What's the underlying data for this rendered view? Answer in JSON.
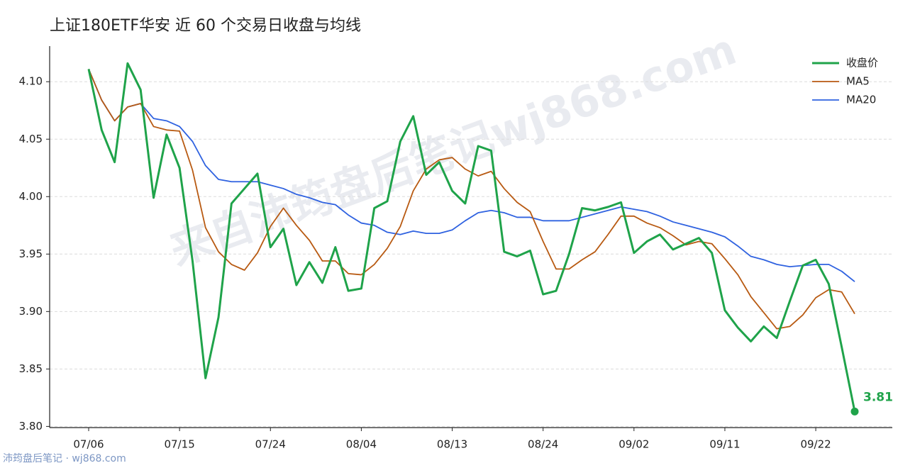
{
  "chart_data": {
    "type": "line",
    "title": "上证180ETF华安 近 60 个交易日收盘与均线",
    "watermark": "来自沛筠盘后笔记wj868.com",
    "footer": "沛筠盘后笔记 · wj868.com",
    "categories": [
      "07/06",
      null,
      null,
      null,
      null,
      null,
      null,
      "07/15",
      null,
      null,
      null,
      null,
      null,
      null,
      "07/24",
      null,
      null,
      null,
      null,
      null,
      null,
      "08/04",
      null,
      null,
      null,
      null,
      null,
      null,
      "08/13",
      null,
      null,
      null,
      null,
      null,
      null,
      "08/24",
      null,
      null,
      null,
      null,
      null,
      null,
      "09/02",
      null,
      null,
      null,
      null,
      null,
      null,
      "09/11",
      null,
      null,
      null,
      null,
      null,
      null,
      "09/22",
      null,
      null,
      null
    ],
    "series": [
      {
        "name": "收盘价",
        "color": "#1fa34a",
        "width": 3,
        "values": [
          4.111,
          4.058,
          4.03,
          4.116,
          4.093,
          3.999,
          4.054,
          4.025,
          3.944,
          3.842,
          3.895,
          3.994,
          4.007,
          4.02,
          3.956,
          3.972,
          3.923,
          3.943,
          3.925,
          3.956,
          3.918,
          3.92,
          3.99,
          3.996,
          4.048,
          4.07,
          4.019,
          4.03,
          4.005,
          3.994,
          4.044,
          4.04,
          3.952,
          3.948,
          3.953,
          3.915,
          3.918,
          3.95,
          3.99,
          3.988,
          3.991,
          3.995,
          3.951,
          3.961,
          3.967,
          3.954,
          3.959,
          3.964,
          3.951,
          3.901,
          3.886,
          3.874,
          3.887,
          3.877,
          3.909,
          3.94,
          3.945,
          3.924,
          3.869,
          3.813
        ],
        "value_labels": [
          null,
          null,
          null,
          null,
          null,
          null,
          null,
          null,
          null,
          null,
          null,
          null,
          null,
          null,
          null,
          null,
          null,
          null,
          null,
          null,
          null,
          null,
          null,
          null,
          null,
          null,
          null,
          null,
          null,
          null,
          null,
          null,
          null,
          null,
          null,
          null,
          null,
          null,
          null,
          null,
          null,
          null,
          null,
          null,
          null,
          null,
          null,
          null,
          null,
          null,
          null,
          null,
          null,
          null,
          null,
          null,
          null,
          null,
          null,
          "3.81"
        ]
      },
      {
        "name": "MA5",
        "color": "#b85a12",
        "width": 1.8,
        "values": [
          4.111,
          4.084,
          4.066,
          4.078,
          4.081,
          4.061,
          4.058,
          4.057,
          4.023,
          3.973,
          3.952,
          3.941,
          3.936,
          3.951,
          3.974,
          3.99,
          3.975,
          3.962,
          3.944,
          3.944,
          3.933,
          3.932,
          3.941,
          3.955,
          3.974,
          4.005,
          4.024,
          4.032,
          4.034,
          4.024,
          4.018,
          4.022,
          4.007,
          3.995,
          3.987,
          3.961,
          3.937,
          3.937,
          3.945,
          3.952,
          3.967,
          3.983,
          3.983,
          3.977,
          3.973,
          3.966,
          3.958,
          3.961,
          3.959,
          3.946,
          3.932,
          3.913,
          3.899,
          3.885,
          3.887,
          3.897,
          3.912,
          3.919,
          3.917,
          3.898
        ]
      },
      {
        "name": "MA20",
        "color": "#2f62e0",
        "width": 1.8,
        "values": [
          4.111,
          4.084,
          4.066,
          4.078,
          4.081,
          4.068,
          4.066,
          4.061,
          4.048,
          4.027,
          4.015,
          4.013,
          4.013,
          4.013,
          4.01,
          4.007,
          4.002,
          3.999,
          3.995,
          3.993,
          3.984,
          3.977,
          3.975,
          3.969,
          3.967,
          3.97,
          3.968,
          3.968,
          3.971,
          3.979,
          3.986,
          3.988,
          3.986,
          3.982,
          3.982,
          3.979,
          3.979,
          3.979,
          3.982,
          3.985,
          3.988,
          3.991,
          3.989,
          3.987,
          3.983,
          3.978,
          3.975,
          3.972,
          3.969,
          3.965,
          3.957,
          3.948,
          3.945,
          3.941,
          3.939,
          3.94,
          3.941,
          3.941,
          3.935,
          3.926
        ]
      }
    ],
    "ylim": [
      3.799,
      4.131
    ],
    "yticks": [
      {
        "value": 3.8,
        "label": "3.80"
      },
      3.85,
      {
        "value": 3.9,
        "label": "3.90"
      },
      3.95,
      {
        "value": 4.0,
        "label": "4.00"
      },
      4.05,
      {
        "value": 4.1,
        "label": "4.10"
      }
    ],
    "grid": true,
    "legend": "upper right"
  }
}
